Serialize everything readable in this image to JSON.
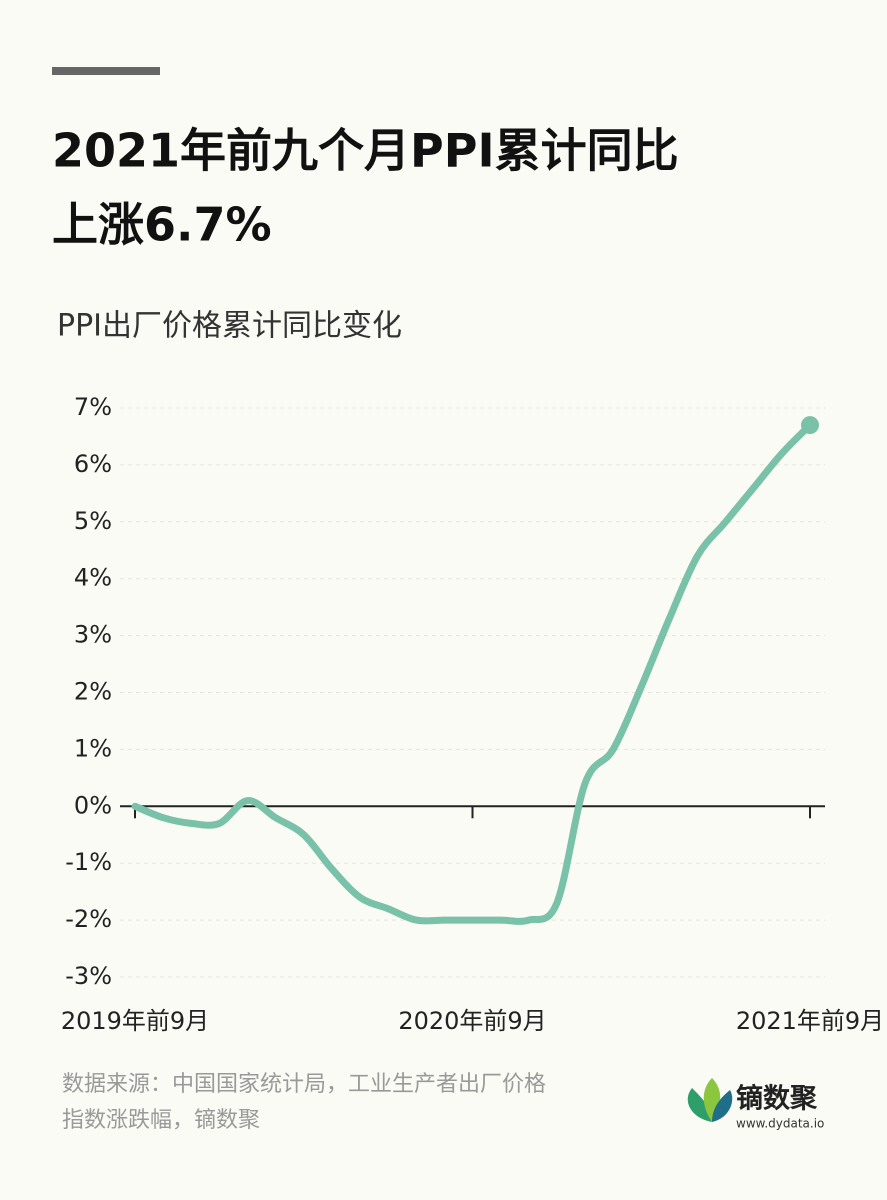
{
  "chart_data": {
    "type": "line",
    "title": [
      "2021年前九个月PPI累计同比",
      "上涨6.7%"
    ],
    "subtitle": "PPI出厂价格累计同比变化",
    "categories": [
      "2019年前9月",
      null,
      null,
      null,
      null,
      null,
      null,
      null,
      null,
      null,
      null,
      null,
      "2020年前9月",
      null,
      null,
      null,
      null,
      null,
      null,
      null,
      null,
      null,
      null,
      null,
      "2021年前9月"
    ],
    "series": [
      {
        "name": "PPI出厂价格累计同比",
        "color": "#79c1a8",
        "values": [
          0.0,
          -0.2,
          -0.3,
          -0.3,
          0.1,
          -0.2,
          -0.5,
          -1.1,
          -1.6,
          -1.8,
          -2.0,
          -2.0,
          -2.0,
          -2.0,
          -2.0,
          -1.7,
          0.4,
          1.0,
          2.1,
          3.3,
          4.4,
          5.0,
          5.6,
          6.2,
          6.7
        ]
      }
    ],
    "ylim": [
      -3,
      7
    ],
    "yticks": [
      {
        "value": -3,
        "label": "-3%"
      },
      {
        "value": -2,
        "label": "-2%"
      },
      {
        "value": -1,
        "label": "-1%"
      },
      {
        "value": 0,
        "label": "0%"
      },
      {
        "value": 1,
        "label": "1%"
      },
      {
        "value": 2,
        "label": "2%"
      },
      {
        "value": 3,
        "label": "3%"
      },
      {
        "value": 4,
        "label": "4%"
      },
      {
        "value": 5,
        "label": "5%"
      },
      {
        "value": 6,
        "label": "6%"
      },
      {
        "value": 7,
        "label": "7%"
      }
    ],
    "grid": true,
    "source": [
      "数据来源：中国国家统计局，工业生产者出厂价格",
      "指数涨跌幅，镝数聚"
    ],
    "brand": "镝数聚",
    "brand_url": "www.dydata.io"
  }
}
